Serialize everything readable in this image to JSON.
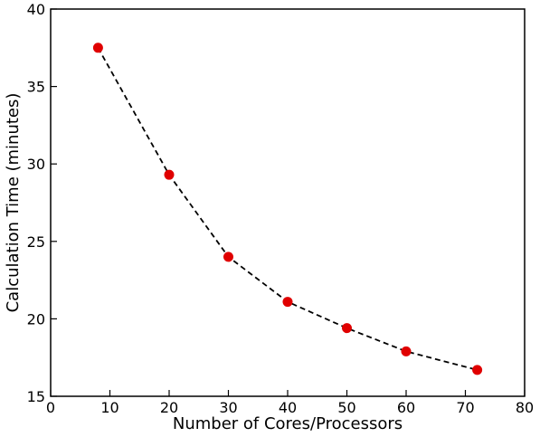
{
  "chart_data": {
    "type": "scatter",
    "title": "",
    "xlabel": "Number of Cores/Processors",
    "ylabel": "Calculation Time (minutes)",
    "xlim": [
      0,
      80
    ],
    "ylim": [
      15,
      40
    ],
    "xticks": [
      0,
      10,
      20,
      30,
      40,
      50,
      60,
      70,
      80
    ],
    "yticks": [
      15,
      20,
      25,
      30,
      35,
      40
    ],
    "xtick_labels": [
      "0",
      "10",
      "20",
      "30",
      "40",
      "50",
      "60",
      "70",
      "80"
    ],
    "ytick_labels": [
      "15",
      "20",
      "25",
      "30",
      "35",
      "40"
    ],
    "grid": false,
    "legend": "none",
    "series": [
      {
        "x": [
          8,
          20,
          30,
          40,
          50,
          60,
          72
        ],
        "y": [
          37.5,
          29.3,
          24.0,
          21.1,
          19.4,
          17.9,
          16.7
        ],
        "marker_color": "#e00000",
        "line_color": "#000000",
        "line_style": "dashed"
      }
    ]
  }
}
